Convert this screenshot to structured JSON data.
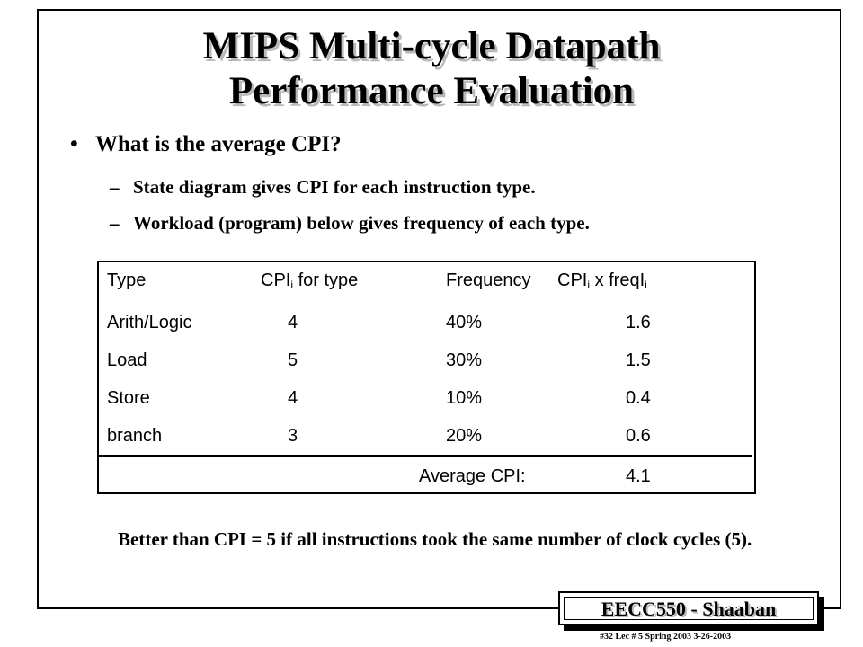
{
  "slide": {
    "title_line1": "MIPS Multi-cycle Datapath",
    "title_line2": "Performance Evaluation",
    "bullet_symbol": "•",
    "bullet": "What is the average CPI?",
    "sub_symbol": "–",
    "subpoints": [
      "State diagram gives CPI for each instruction type.",
      "Workload (program) below gives frequency of each type."
    ]
  },
  "table": {
    "header": {
      "type": "Type",
      "cpi_prefix": "CPI",
      "cpi_sub": "i",
      "cpi_suffix": " for type",
      "freq": "Frequency",
      "prod_prefix": "CPI",
      "prod_sub1": "i",
      "prod_mid": " x freqI",
      "prod_sub2": "i"
    },
    "rows": [
      {
        "type": "Arith/Logic",
        "cpi": "4",
        "freq": "40%",
        "prod": "1.6"
      },
      {
        "type": "Load",
        "cpi": "5",
        "freq": "30%",
        "prod": "1.5"
      },
      {
        "type": "Store",
        "cpi": "4",
        "freq": "10%",
        "prod": "0.4"
      },
      {
        "type": "branch",
        "cpi": "3",
        "freq": "20%",
        "prod": "0.6"
      }
    ],
    "average_label": "Average CPI:",
    "average_value": "4.1"
  },
  "note": "Better than CPI = 5  if all instructions took the same number of clock cycles (5).",
  "brand": "EECC550 - Shaaban",
  "footer": "#32   Lec # 5  Spring 2003  3-26-2003"
}
